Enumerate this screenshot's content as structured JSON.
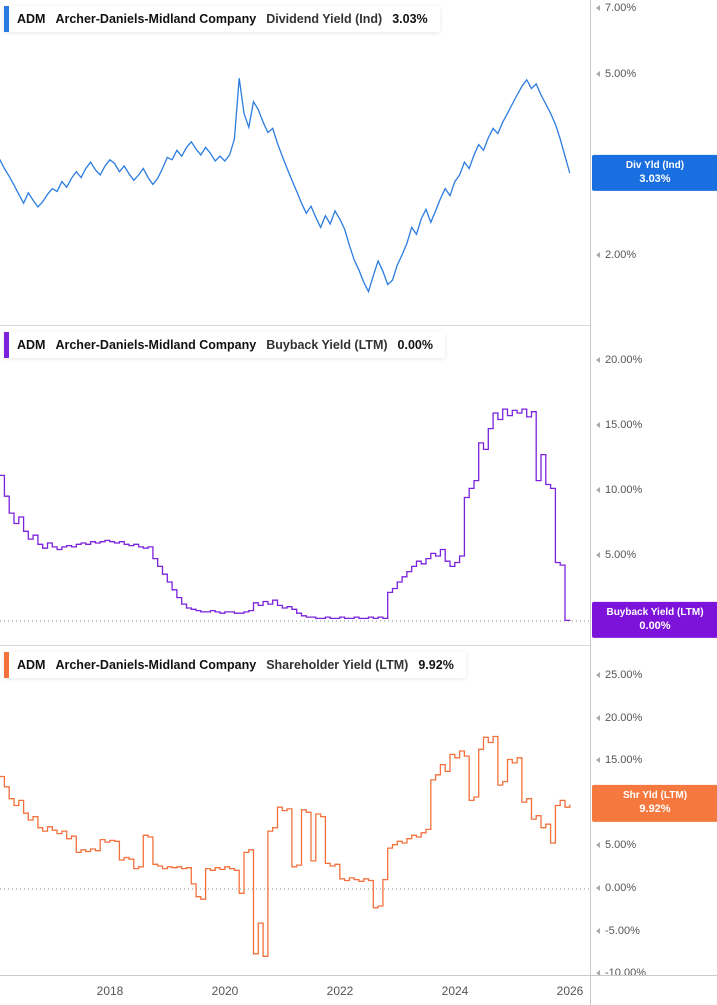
{
  "colors": {
    "dividend_line": "#2b7ce0",
    "dividend_badge": "#1a6fe0",
    "buyback_line": "#7c22dd",
    "buyback_badge": "#7d13da",
    "shareholder_line": "#f4713c",
    "shareholder_badge": "#f5793f"
  },
  "x_axis": {
    "ticks": [
      {
        "label": "2018",
        "year": 2018
      },
      {
        "label": "2020",
        "year": 2020
      },
      {
        "label": "2022",
        "year": 2022
      },
      {
        "label": "2024",
        "year": 2024
      },
      {
        "label": "2026",
        "year": 2026
      }
    ]
  },
  "chart_data": [
    {
      "id": "dividend",
      "type": "line",
      "yscale": "log",
      "header": {
        "ticker": "ADM",
        "company": "Archer-Daniels-Midland Company",
        "metric": "Dividend Yield (Ind)",
        "value": "3.03%"
      },
      "color": "#2b7ce0",
      "badge": {
        "line1": "Div Yld (Ind)",
        "line2": "3.03%",
        "value": 3.03,
        "color": "#1a6fe0"
      },
      "y_ticks": [
        {
          "label": "7.00%",
          "value": 7.0
        },
        {
          "label": "5.00%",
          "value": 5.0
        },
        {
          "label": "2.00%",
          "value": 2.0
        }
      ],
      "ylim": [
        1.4,
        7.3
      ],
      "x_start": 2016.08,
      "x_step": 0.08333,
      "y": [
        3.25,
        3.1,
        2.98,
        2.85,
        2.72,
        2.6,
        2.74,
        2.64,
        2.55,
        2.62,
        2.72,
        2.8,
        2.76,
        2.9,
        2.82,
        2.95,
        3.05,
        2.96,
        3.1,
        3.2,
        3.08,
        3.0,
        3.14,
        3.24,
        3.18,
        3.05,
        3.14,
        3.02,
        2.92,
        3.0,
        3.1,
        2.96,
        2.86,
        2.95,
        3.1,
        3.28,
        3.24,
        3.4,
        3.3,
        3.45,
        3.55,
        3.42,
        3.32,
        3.45,
        3.35,
        3.22,
        3.3,
        3.22,
        3.32,
        3.6,
        4.9,
        4.1,
        3.82,
        4.35,
        4.18,
        3.92,
        3.72,
        3.8,
        3.52,
        3.3,
        3.1,
        2.92,
        2.76,
        2.6,
        2.47,
        2.56,
        2.42,
        2.3,
        2.44,
        2.34,
        2.5,
        2.4,
        2.28,
        2.1,
        1.95,
        1.85,
        1.74,
        1.66,
        1.8,
        1.94,
        1.84,
        1.72,
        1.76,
        1.9,
        2.0,
        2.12,
        2.3,
        2.22,
        2.4,
        2.52,
        2.36,
        2.5,
        2.66,
        2.8,
        2.7,
        2.9,
        3.0,
        3.2,
        3.1,
        3.32,
        3.5,
        3.4,
        3.62,
        3.8,
        3.7,
        3.92,
        4.1,
        4.3,
        4.5,
        4.7,
        4.86,
        4.65,
        4.76,
        4.5,
        4.3,
        4.1,
        3.88,
        3.6,
        3.3,
        3.03
      ]
    },
    {
      "id": "buyback",
      "type": "line",
      "yscale": "linear",
      "header": {
        "ticker": "ADM",
        "company": "Archer-Daniels-Midland Company",
        "metric": "Buyback Yield (LTM)",
        "value": "0.00%"
      },
      "color": "#7c22dd",
      "badge": {
        "line1": "Buyback Yield (LTM)",
        "line2": "0.00%",
        "value": 0.0,
        "color": "#7d13da"
      },
      "y_ticks": [
        {
          "label": "20.00%",
          "value": 20.0
        },
        {
          "label": "15.00%",
          "value": 15.0
        },
        {
          "label": "10.00%",
          "value": 10.0
        },
        {
          "label": "5.00%",
          "value": 5.0
        }
      ],
      "ylim": [
        -2,
        22
      ],
      "x_start": 2016.08,
      "x_step": 0.08333,
      "y": [
        11.2,
        9.6,
        8.3,
        7.5,
        8.0,
        6.9,
        6.3,
        6.6,
        5.9,
        5.6,
        6.0,
        5.7,
        5.5,
        5.7,
        5.8,
        5.7,
        5.9,
        6.0,
        5.9,
        6.1,
        6.0,
        6.1,
        6.2,
        6.1,
        6.0,
        6.1,
        5.9,
        5.8,
        5.9,
        5.7,
        5.6,
        5.7,
        4.8,
        4.2,
        3.6,
        3.0,
        2.4,
        1.8,
        1.3,
        1.0,
        0.9,
        0.8,
        0.7,
        0.7,
        0.8,
        0.7,
        0.6,
        0.7,
        0.7,
        0.6,
        0.6,
        0.7,
        0.8,
        1.4,
        1.2,
        1.5,
        1.3,
        1.6,
        1.2,
        1.0,
        1.1,
        0.9,
        0.6,
        0.4,
        0.3,
        0.3,
        0.2,
        0.2,
        0.3,
        0.2,
        0.2,
        0.3,
        0.2,
        0.2,
        0.3,
        0.2,
        0.2,
        0.3,
        0.2,
        0.3,
        0.2,
        2.2,
        2.5,
        3.0,
        3.4,
        3.8,
        4.2,
        4.6,
        4.4,
        4.8,
        5.2,
        5.0,
        5.5,
        4.6,
        4.2,
        4.5,
        5.0,
        9.5,
        10.2,
        10.8,
        13.7,
        13.2,
        14.8,
        16.0,
        15.5,
        16.3,
        15.8,
        16.2,
        16.0,
        16.3,
        15.7,
        16.1,
        10.8,
        12.8,
        10.5,
        10.2,
        4.5,
        4.3,
        0.05,
        0.0
      ]
    },
    {
      "id": "shareholder",
      "type": "line",
      "yscale": "linear",
      "header": {
        "ticker": "ADM",
        "company": "Archer-Daniels-Midland Company",
        "metric": "Shareholder Yield (LTM)",
        "value": "9.92%"
      },
      "color": "#f4713c",
      "badge": {
        "line1": "Shr Yld (LTM)",
        "line2": "9.92%",
        "value": 9.92,
        "color": "#f5793f"
      },
      "y_ticks": [
        {
          "label": "25.00%",
          "value": 25.0
        },
        {
          "label": "20.00%",
          "value": 20.0
        },
        {
          "label": "15.00%",
          "value": 15.0
        },
        {
          "label": "5.00%",
          "value": 5.0
        },
        {
          "label": "0.00%",
          "value": 0.0
        },
        {
          "label": "-5.00%",
          "value": -5.0
        },
        {
          "label": "-10.00%",
          "value": -10.0
        }
      ],
      "ylim": [
        -10.5,
        28
      ],
      "x_start": 2016.08,
      "x_step": 0.08333,
      "y": [
        13.2,
        12.0,
        10.6,
        9.8,
        10.4,
        8.9,
        8.1,
        8.5,
        7.2,
        6.8,
        7.3,
        6.9,
        6.5,
        6.8,
        5.9,
        6.2,
        4.3,
        4.6,
        4.4,
        4.7,
        4.5,
        5.8,
        5.5,
        5.7,
        5.6,
        3.4,
        3.7,
        3.5,
        2.4,
        2.6,
        6.3,
        6.1,
        2.9,
        2.7,
        2.4,
        2.6,
        2.5,
        2.6,
        2.4,
        2.5,
        0.6,
        -0.9,
        -1.2,
        2.4,
        2.2,
        2.5,
        2.3,
        2.6,
        2.4,
        2.2,
        -0.5,
        4.3,
        4.6,
        -7.6,
        -4.0,
        -7.9,
        6.8,
        7.2,
        9.6,
        9.2,
        9.4,
        2.6,
        2.8,
        9.3,
        9.0,
        3.3,
        8.8,
        8.5,
        3.0,
        2.7,
        2.9,
        1.2,
        1.0,
        1.3,
        1.1,
        0.9,
        1.2,
        1.0,
        -2.2,
        -2.0,
        1.1,
        4.8,
        5.2,
        5.6,
        5.4,
        5.9,
        6.3,
        6.1,
        6.6,
        7.0,
        12.8,
        13.4,
        14.6,
        13.8,
        15.8,
        15.4,
        16.2,
        15.6,
        10.4,
        10.8,
        16.4,
        17.8,
        17.2,
        17.9,
        12.2,
        12.6,
        15.2,
        14.8,
        15.4,
        10.2,
        10.6,
        8.2,
        8.6,
        7.2,
        7.6,
        5.4,
        9.8,
        10.4,
        9.6,
        9.92
      ]
    }
  ]
}
